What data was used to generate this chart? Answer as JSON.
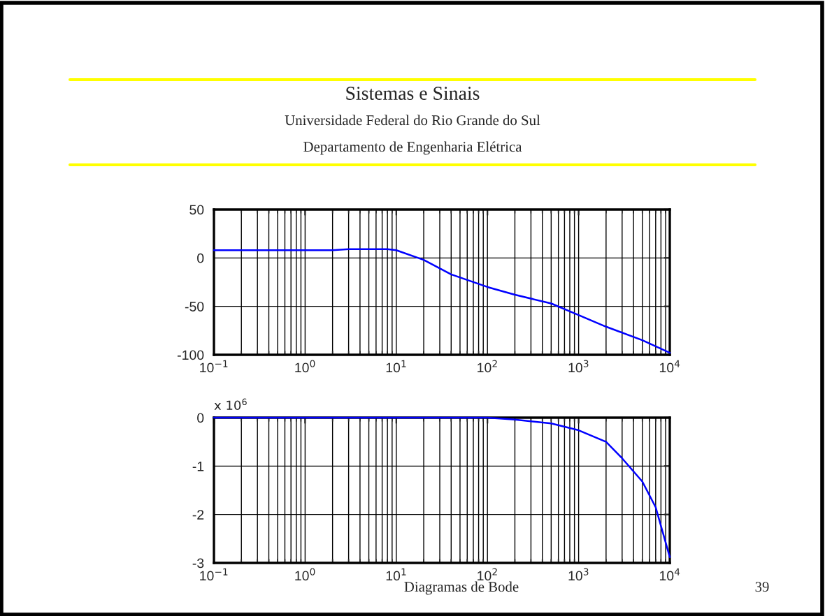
{
  "chart_data": [
    {
      "type": "line",
      "title": "Sistemas e Sinais",
      "subtitle": "Universidade Federal do Rio Grande do Sul\nDepartamento de Engenharia Elétrica",
      "log": "x",
      "x": [
        0.1,
        2,
        3,
        8,
        10,
        20,
        40,
        100,
        200,
        500,
        1000,
        2000,
        5000,
        10000
      ],
      "series": [
        {
          "color": "#0000ff",
          "values": [
            8,
            8,
            9,
            9,
            8,
            -2,
            -17,
            -30,
            -38,
            -47,
            -59,
            -71,
            -85,
            -98
          ]
        }
      ],
      "xlim": [
        0.1,
        10000
      ],
      "xticks": [
        {
          "value": 0.1,
          "label": "10$^{−1}$"
        },
        {
          "value": 1,
          "label": "10$^{0}$"
        },
        {
          "value": 10,
          "label": "10$^{1}$"
        },
        {
          "value": 100,
          "label": "10$^{2}$"
        },
        {
          "value": 1000,
          "label": "10$^{3}$"
        },
        {
          "value": 10000,
          "label": "10$^{4}$"
        }
      ],
      "ylim": [
        -100,
        50
      ],
      "yticks": [
        -100,
        -50,
        0,
        50
      ],
      "grid": true,
      "legend": false
    },
    {
      "type": "line",
      "log": "x",
      "x": [
        0.1,
        100,
        200,
        500,
        1000,
        2000,
        3000,
        5000,
        7000,
        10000
      ],
      "series": [
        {
          "color": "#0000ff",
          "values": [
            0,
            0,
            -0.04,
            -0.12,
            -0.26,
            -0.5,
            -0.84,
            -1.32,
            -1.85,
            -2.88
          ]
        }
      ],
      "xlim": [
        0.1,
        10000
      ],
      "xticks": [
        {
          "value": 0.1,
          "label": "10$^{−1}$"
        },
        {
          "value": 1,
          "label": "10$^{0}$"
        },
        {
          "value": 10,
          "label": "10$^{1}$"
        },
        {
          "value": 100,
          "label": "10$^{2}$"
        },
        {
          "value": 1000,
          "label": "10$^{3}$"
        },
        {
          "value": 10000,
          "label": "10$^{4}$"
        }
      ],
      "ylim": [
        -3,
        0
      ],
      "yticks": [
        -3,
        -2,
        -1,
        0
      ],
      "grid": true,
      "legend": false,
      "annotations": [
        "x 10$^{6}$",
        "Diagramas de Bode",
        "39"
      ]
    }
  ]
}
